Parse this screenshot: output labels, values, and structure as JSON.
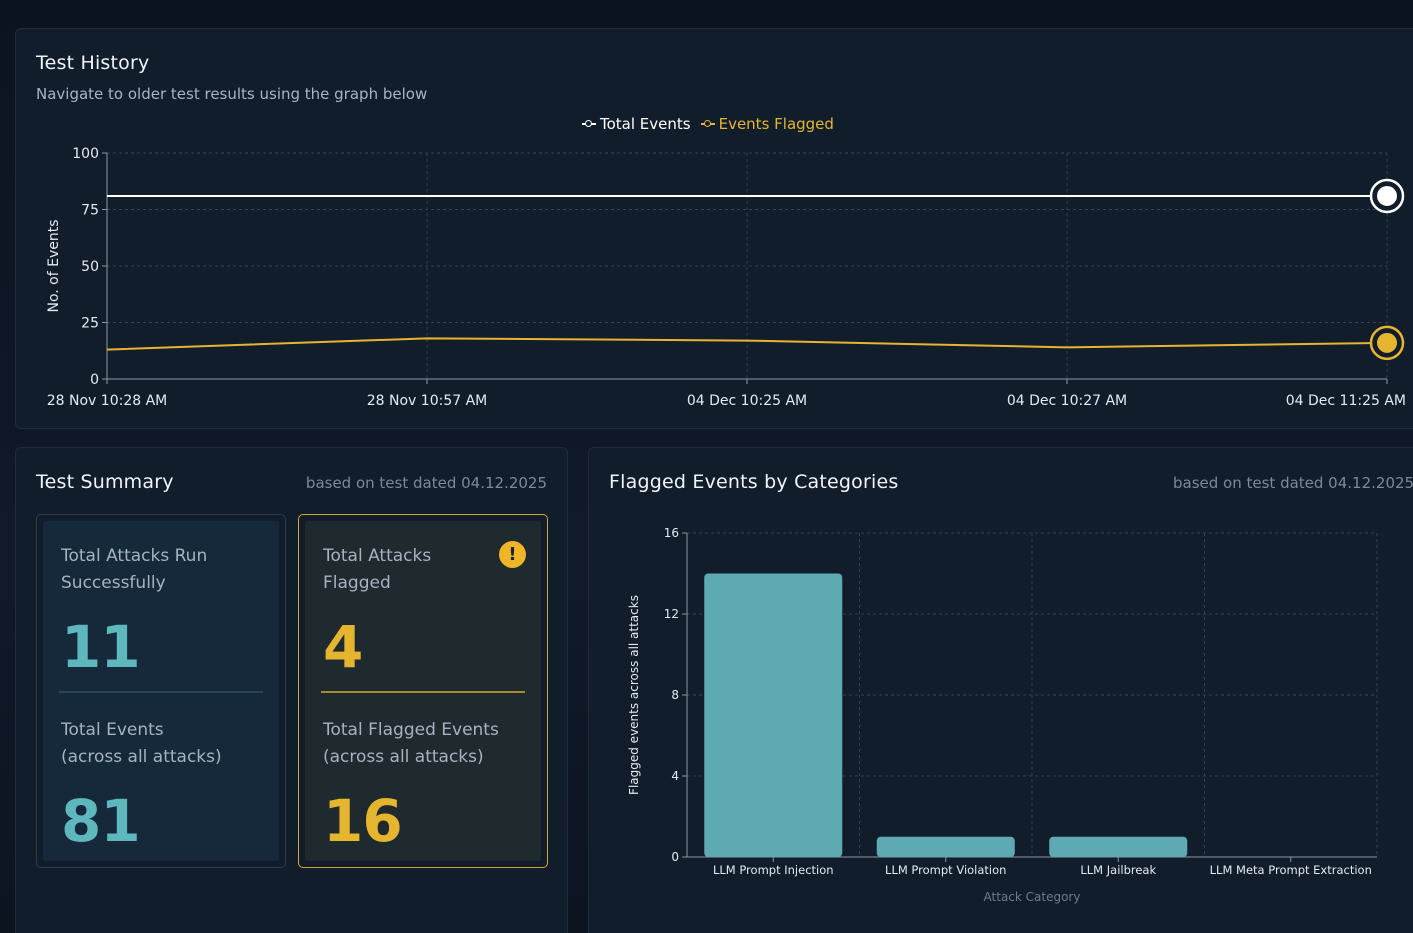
{
  "history": {
    "title": "Test History",
    "subtitle": "Navigate to older test results using the graph below",
    "legend": {
      "total_label": "Total Events",
      "flagged_label": "Events Flagged",
      "total_color": "#ffffff",
      "flagged_color": "#e6b52f"
    },
    "chart_data": {
      "type": "line",
      "ylabel": "No. of Events",
      "ylim": [
        0,
        100
      ],
      "yticks": [
        0,
        25,
        50,
        75,
        100
      ],
      "categories": [
        "28 Nov 10:28 AM",
        "28 Nov 10:57 AM",
        "04 Dec 10:25 AM",
        "04 Dec 10:27 AM",
        "04 Dec 11:25 AM"
      ],
      "series": [
        {
          "name": "Total Events",
          "values": [
            81,
            81,
            81,
            81,
            81
          ]
        },
        {
          "name": "Events Flagged",
          "values": [
            13,
            18,
            17,
            14,
            16
          ]
        }
      ]
    }
  },
  "summary": {
    "title": "Test Summary",
    "meta": "based on test dated 04.12.2025",
    "success_card": {
      "label_line1": "Total Attacks Run",
      "label_line2": "Successfully",
      "value": "11",
      "events_line1": "Total Events",
      "events_line2": "(across all attacks)",
      "events_value": "81"
    },
    "flagged_card": {
      "label_line1": "Total Attacks",
      "label_line2": "Flagged",
      "value": "4",
      "alert_glyph": "!",
      "events_line1": "Total Flagged Events",
      "events_line2": "(across all attacks)",
      "events_value": "16"
    }
  },
  "categories": {
    "title": "Flagged Events by Categories",
    "meta": "based on test dated 04.12.2025",
    "chart_data": {
      "type": "bar",
      "ylabel": "Flagged events across all attacks",
      "xlabel": "Attack Category",
      "ylim": [
        0,
        16
      ],
      "yticks": [
        0,
        4,
        8,
        12,
        16
      ],
      "categories": [
        "LLM Prompt Injection",
        "LLM Prompt Violation",
        "LLM Jailbreak",
        "LLM Meta Prompt Extraction"
      ],
      "values": [
        14,
        1,
        1,
        0
      ],
      "bar_color": "#5eaab3"
    }
  }
}
